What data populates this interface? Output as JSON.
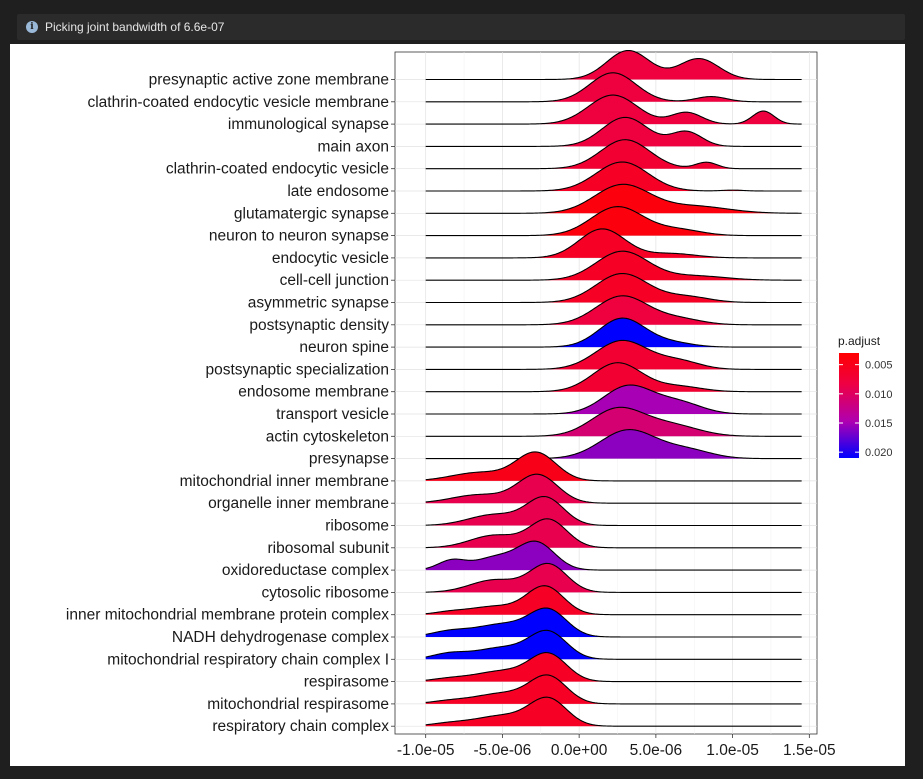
{
  "message": {
    "icon": "info-icon",
    "text": "Picking joint bandwidth of 6.6e-07"
  },
  "legend": {
    "title": "p.adjust",
    "ticks": [
      "0.005",
      "0.010",
      "0.015",
      "0.020"
    ],
    "tick_values": [
      0.005,
      0.01,
      0.015,
      0.02
    ],
    "range": [
      0.003,
      0.021
    ],
    "color_low_p": "#ff0000",
    "color_high_p": "#0000ff"
  },
  "chart_data": {
    "type": "ridgeline",
    "x_ticks": [
      "-1.0e-05",
      "-5.0e-06",
      "0.0e+00",
      "5.0e-06",
      "1.0e-05",
      "1.5e-05"
    ],
    "x_tick_values": [
      -1e-05,
      -5e-06,
      0,
      5e-06,
      1e-05,
      1.5e-05
    ],
    "xlim": [
      -1.2e-05,
      1.55e-05
    ],
    "grid": true,
    "legend_position": "right",
    "categories": [
      {
        "name": "presynaptic active zone membrane",
        "p_adjust": 0.008,
        "peaks": [
          [
            3.2e-06,
            1.0,
            1.4e-06
          ],
          [
            7.8e-06,
            0.72,
            1.3e-06
          ]
        ]
      },
      {
        "name": "clathrin-coated endocytic vesicle membrane",
        "p_adjust": 0.008,
        "peaks": [
          [
            2.2e-06,
            1.0,
            1.5e-06
          ],
          [
            8.6e-06,
            0.18,
            1e-06
          ]
        ]
      },
      {
        "name": "immunological synapse",
        "p_adjust": 0.008,
        "peaks": [
          [
            2.2e-06,
            1.0,
            1.6e-06
          ],
          [
            7e-06,
            0.4,
            1e-06
          ],
          [
            1.2e-05,
            0.45,
            7e-07
          ]
        ]
      },
      {
        "name": "main axon",
        "p_adjust": 0.008,
        "peaks": [
          [
            3e-06,
            1.0,
            1.5e-06
          ],
          [
            7e-06,
            0.5,
            1e-06
          ]
        ]
      },
      {
        "name": "clathrin-coated endocytic vesicle",
        "p_adjust": 0.007,
        "peaks": [
          [
            3e-06,
            1.0,
            1.6e-06
          ],
          [
            8.3e-06,
            0.22,
            7e-07
          ]
        ]
      },
      {
        "name": "late endosome",
        "p_adjust": 0.006,
        "peaks": [
          [
            2.8e-06,
            1.0,
            1.7e-06
          ],
          [
            1e-05,
            0.03,
            7e-07
          ]
        ]
      },
      {
        "name": "glutamatergic synapse",
        "p_adjust": 0.004,
        "peaks": [
          [
            2.8e-06,
            1.0,
            1.8e-06
          ],
          [
            7.5e-06,
            0.25,
            2.2e-06
          ]
        ]
      },
      {
        "name": "neuron to neuron synapse",
        "p_adjust": 0.004,
        "peaks": [
          [
            2.5e-06,
            1.0,
            1.7e-06
          ],
          [
            6.5e-06,
            0.2,
            1.5e-06
          ]
        ]
      },
      {
        "name": "endocytic vesicle",
        "p_adjust": 0.006,
        "peaks": [
          [
            1.5e-06,
            1.0,
            1.5e-06
          ],
          [
            6e-06,
            0.15,
            1.6e-06
          ]
        ]
      },
      {
        "name": "cell-cell junction",
        "p_adjust": 0.006,
        "peaks": [
          [
            2.8e-06,
            1.0,
            1.7e-06
          ],
          [
            7.5e-06,
            0.15,
            2e-06
          ]
        ]
      },
      {
        "name": "asymmetric synapse",
        "p_adjust": 0.006,
        "peaks": [
          [
            2.8e-06,
            1.0,
            1.7e-06
          ],
          [
            7e-06,
            0.2,
            1.5e-06
          ]
        ]
      },
      {
        "name": "postsynaptic density",
        "p_adjust": 0.008,
        "peaks": [
          [
            2.8e-06,
            1.0,
            1.7e-06
          ],
          [
            6.5e-06,
            0.2,
            1.5e-06
          ]
        ]
      },
      {
        "name": "neuron spine",
        "p_adjust": 0.021,
        "peaks": [
          [
            2.8e-06,
            1.0,
            1.5e-06
          ],
          [
            6e-06,
            0.15,
            1.4e-06
          ]
        ]
      },
      {
        "name": "postsynaptic specialization",
        "p_adjust": 0.007,
        "peaks": [
          [
            2.8e-06,
            1.0,
            1.7e-06
          ],
          [
            6.5e-06,
            0.28,
            1.4e-06
          ]
        ]
      },
      {
        "name": "endosome membrane",
        "p_adjust": 0.007,
        "peaks": [
          [
            2.5e-06,
            1.0,
            1.6e-06
          ],
          [
            6.5e-06,
            0.18,
            1.5e-06
          ]
        ]
      },
      {
        "name": "transport vesicle",
        "p_adjust": 0.015,
        "peaks": [
          [
            3.2e-06,
            1.0,
            1.6e-06
          ],
          [
            6.5e-06,
            0.4,
            1.5e-06
          ]
        ]
      },
      {
        "name": "actin cytoskeleton",
        "p_adjust": 0.011,
        "peaks": [
          [
            2.5e-06,
            1.0,
            1.7e-06
          ],
          [
            6e-06,
            0.4,
            1.8e-06
          ]
        ]
      },
      {
        "name": "presynapse",
        "p_adjust": 0.016,
        "peaks": [
          [
            3.2e-06,
            1.0,
            1.8e-06
          ],
          [
            7e-06,
            0.3,
            1.6e-06
          ]
        ]
      },
      {
        "name": "mitochondrial inner membrane",
        "p_adjust": 0.005,
        "peaks": [
          [
            -2.8e-06,
            1.0,
            1.3e-06
          ],
          [
            -6.5e-06,
            0.3,
            1.8e-06
          ]
        ]
      },
      {
        "name": "organelle inner membrane",
        "p_adjust": 0.009,
        "peaks": [
          [
            -2.7e-06,
            1.0,
            1.3e-06
          ],
          [
            -6.5e-06,
            0.3,
            1.8e-06
          ]
        ]
      },
      {
        "name": "ribosome",
        "p_adjust": 0.009,
        "peaks": [
          [
            -2.2e-06,
            1.0,
            1.2e-06
          ],
          [
            -5.5e-06,
            0.4,
            1.7e-06
          ]
        ]
      },
      {
        "name": "ribosomal subunit",
        "p_adjust": 0.009,
        "peaks": [
          [
            -2e-06,
            1.0,
            1.2e-06
          ],
          [
            -5.5e-06,
            0.45,
            1.6e-06
          ]
        ]
      },
      {
        "name": "oxidoreductase complex",
        "p_adjust": 0.016,
        "peaks": [
          [
            -2.8e-06,
            1.0,
            1.2e-06
          ],
          [
            -5.5e-06,
            0.45,
            1.3e-06
          ],
          [
            -8.3e-06,
            0.35,
            9e-07
          ]
        ]
      },
      {
        "name": "cytosolic ribosome",
        "p_adjust": 0.009,
        "peaks": [
          [
            -2e-06,
            1.0,
            1.2e-06
          ],
          [
            -5.5e-06,
            0.45,
            1.6e-06
          ]
        ]
      },
      {
        "name": "inner mitochondrial membrane protein complex",
        "p_adjust": 0.006,
        "peaks": [
          [
            -2.2e-06,
            1.0,
            1.2e-06
          ],
          [
            -5.5e-06,
            0.3,
            1.7e-06
          ],
          [
            -8.5e-06,
            0.08,
            1e-06
          ]
        ]
      },
      {
        "name": "NADH dehydrogenase complex",
        "p_adjust": 0.021,
        "peaks": [
          [
            -2e-06,
            1.0,
            1.2e-06
          ],
          [
            -5e-06,
            0.5,
            1.8e-06
          ],
          [
            -8.5e-06,
            0.2,
            1.2e-06
          ]
        ]
      },
      {
        "name": "mitochondrial respiratory chain complex I",
        "p_adjust": 0.021,
        "peaks": [
          [
            -2e-06,
            1.0,
            1.2e-06
          ],
          [
            -5e-06,
            0.45,
            1.8e-06
          ],
          [
            -8.5e-06,
            0.2,
            1.1e-06
          ]
        ]
      },
      {
        "name": "respirasome",
        "p_adjust": 0.006,
        "peaks": [
          [
            -2e-06,
            1.0,
            1.2e-06
          ],
          [
            -5e-06,
            0.4,
            1.8e-06
          ],
          [
            -8.5e-06,
            0.1,
            1.2e-06
          ]
        ]
      },
      {
        "name": "mitochondrial respirasome",
        "p_adjust": 0.006,
        "peaks": [
          [
            -2e-06,
            1.0,
            1.2e-06
          ],
          [
            -5e-06,
            0.4,
            1.8e-06
          ],
          [
            -8.5e-06,
            0.1,
            1.2e-06
          ]
        ]
      },
      {
        "name": "respiratory chain complex",
        "p_adjust": 0.006,
        "peaks": [
          [
            -2e-06,
            1.0,
            1.2e-06
          ],
          [
            -5e-06,
            0.4,
            1.8e-06
          ],
          [
            -8.5e-06,
            0.1,
            1.2e-06
          ]
        ]
      }
    ]
  }
}
